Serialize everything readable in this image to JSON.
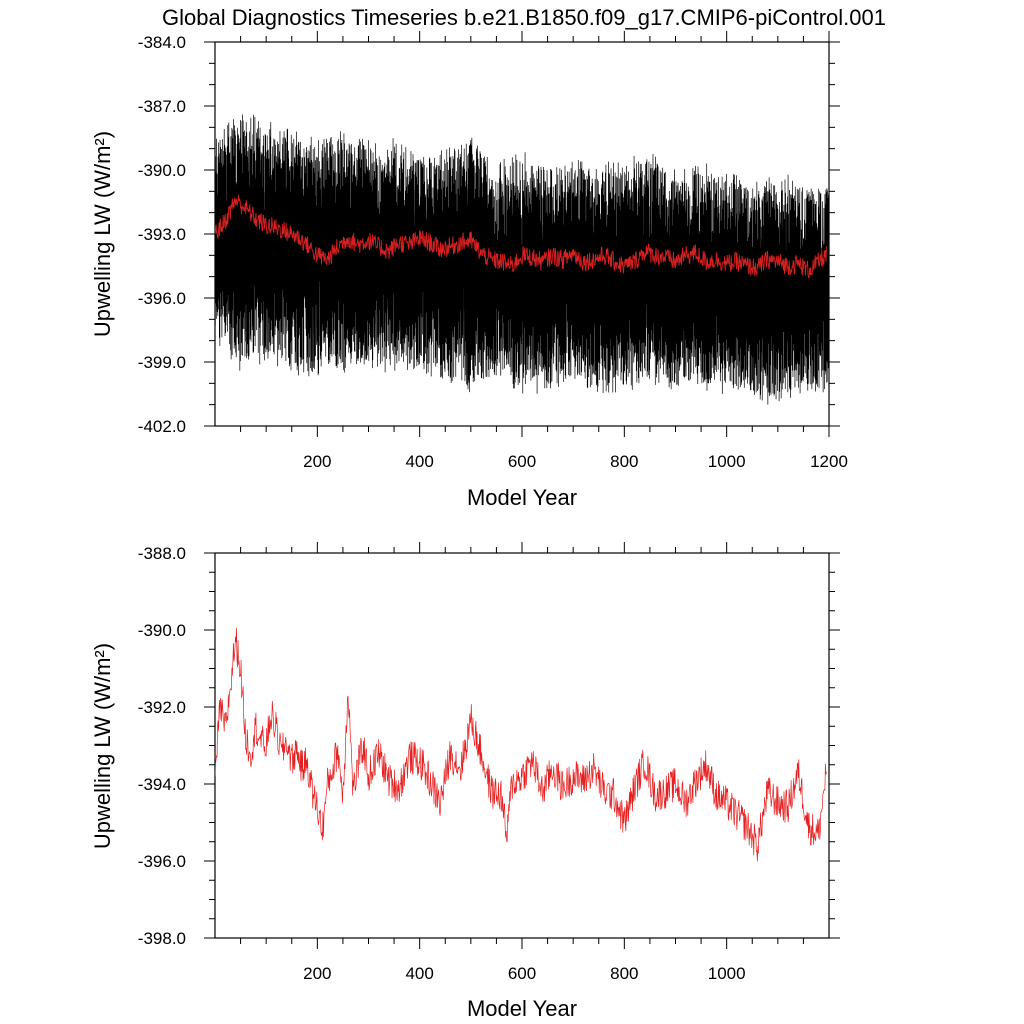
{
  "figure": {
    "title": "Global Diagnostics Timeseries b.e21.B1850.f09_g17.CMIP6-piControl.001"
  },
  "chart_data": [
    {
      "type": "line",
      "xlabel": "Model Year",
      "ylabel": "Upwelling LW (W/m²)",
      "xlim": [
        0,
        1200
      ],
      "ylim": [
        -402.0,
        -384.0
      ],
      "xticks": [
        200,
        400,
        600,
        800,
        1000,
        1200
      ],
      "yticks": [
        -402.0,
        -399.0,
        -396.0,
        -393.0,
        -390.0,
        -387.0,
        -384.0
      ],
      "grid": false,
      "series": [
        {
          "color": "#000000",
          "resolution": "monthly",
          "envelope_x": [
            0,
            50,
            100,
            150,
            200,
            250,
            300,
            350,
            400,
            450,
            500,
            550,
            600,
            650,
            700,
            750,
            800,
            850,
            900,
            950,
            1000,
            1050,
            1100,
            1150,
            1200
          ],
          "envelope_upper": [
            -388.5,
            -387.0,
            -387.5,
            -388.0,
            -388.5,
            -388.0,
            -388.5,
            -388.5,
            -389.0,
            -389.0,
            -388.0,
            -389.5,
            -389.0,
            -389.5,
            -389.5,
            -389.5,
            -389.5,
            -389.0,
            -390.0,
            -389.5,
            -390.0,
            -390.5,
            -390.0,
            -390.5,
            -390.5
          ],
          "envelope_lower": [
            -398.0,
            -399.5,
            -399.0,
            -399.5,
            -400.0,
            -399.5,
            -399.5,
            -399.5,
            -399.5,
            -400.0,
            -400.5,
            -400.0,
            -400.5,
            -400.5,
            -400.0,
            -400.5,
            -400.5,
            -400.0,
            -400.5,
            -400.5,
            -400.5,
            -401.0,
            -401.0,
            -400.5,
            -400.5
          ]
        },
        {
          "color": "#d42020",
          "resolution": "annual mean",
          "x": [
            0,
            20,
            40,
            60,
            80,
            100,
            120,
            140,
            160,
            180,
            200,
            220,
            240,
            260,
            280,
            300,
            320,
            340,
            360,
            380,
            400,
            420,
            440,
            460,
            480,
            500,
            520,
            540,
            560,
            580,
            600,
            620,
            640,
            660,
            680,
            700,
            720,
            740,
            760,
            780,
            800,
            820,
            840,
            860,
            880,
            900,
            920,
            940,
            960,
            980,
            1000,
            1020,
            1040,
            1060,
            1080,
            1100,
            1120,
            1140,
            1160,
            1180,
            1195
          ],
          "y": [
            -393.0,
            -392.4,
            -391.4,
            -391.8,
            -392.3,
            -392.6,
            -392.7,
            -392.9,
            -393.1,
            -393.5,
            -394.0,
            -394.2,
            -393.6,
            -393.2,
            -393.5,
            -393.3,
            -393.6,
            -393.8,
            -393.4,
            -393.5,
            -393.2,
            -393.4,
            -393.7,
            -393.6,
            -393.4,
            -393.3,
            -393.9,
            -394.2,
            -394.3,
            -394.5,
            -394.0,
            -394.1,
            -394.3,
            -394.0,
            -394.2,
            -393.9,
            -394.3,
            -394.2,
            -394.0,
            -394.3,
            -394.5,
            -394.3,
            -393.8,
            -394.0,
            -394.1,
            -394.3,
            -394.0,
            -393.9,
            -394.3,
            -394.2,
            -394.4,
            -394.3,
            -394.5,
            -394.6,
            -394.2,
            -394.3,
            -394.5,
            -394.4,
            -394.7,
            -394.3,
            -394.0
          ]
        }
      ]
    },
    {
      "type": "line",
      "xlabel": "Model Year",
      "ylabel": "Upwelling LW (W/m²)",
      "xlim": [
        0,
        1200
      ],
      "ylim": [
        -398.0,
        -388.0
      ],
      "xticks": [
        200,
        400,
        600,
        800,
        1000
      ],
      "yticks": [
        -398.0,
        -396.0,
        -394.0,
        -392.0,
        -390.0,
        -388.0
      ],
      "grid": false,
      "series": [
        {
          "color": "#e62020",
          "resolution": "annual mean",
          "x": [
            0,
            10,
            20,
            30,
            40,
            50,
            60,
            70,
            80,
            90,
            100,
            110,
            120,
            130,
            140,
            150,
            160,
            170,
            180,
            190,
            200,
            210,
            220,
            230,
            240,
            250,
            260,
            270,
            280,
            290,
            300,
            320,
            340,
            360,
            380,
            400,
            420,
            440,
            460,
            480,
            490,
            500,
            520,
            540,
            560,
            570,
            580,
            600,
            620,
            640,
            660,
            680,
            700,
            720,
            740,
            760,
            780,
            800,
            820,
            840,
            860,
            880,
            900,
            920,
            940,
            960,
            980,
            1000,
            1020,
            1040,
            1060,
            1080,
            1100,
            1120,
            1140,
            1160,
            1180,
            1195
          ],
          "y": [
            -393.8,
            -392.0,
            -392.6,
            -391.5,
            -390.2,
            -391.0,
            -392.8,
            -393.2,
            -392.5,
            -392.9,
            -393.0,
            -392.2,
            -392.6,
            -393.2,
            -392.9,
            -393.4,
            -393.1,
            -393.6,
            -393.4,
            -394.2,
            -394.6,
            -395.2,
            -394.0,
            -393.6,
            -393.1,
            -394.3,
            -391.5,
            -394.2,
            -393.5,
            -393.0,
            -393.8,
            -393.2,
            -393.9,
            -394.1,
            -393.3,
            -393.4,
            -393.9,
            -394.5,
            -393.2,
            -393.6,
            -393.0,
            -392.3,
            -393.2,
            -394.2,
            -394.3,
            -395.4,
            -394.0,
            -393.8,
            -393.4,
            -394.2,
            -393.6,
            -394.1,
            -393.8,
            -393.9,
            -393.6,
            -394.2,
            -394.3,
            -395.0,
            -394.1,
            -393.4,
            -394.3,
            -394.2,
            -394.0,
            -394.5,
            -393.9,
            -393.5,
            -394.3,
            -394.5,
            -394.8,
            -395.1,
            -395.6,
            -394.2,
            -394.5,
            -394.6,
            -393.7,
            -395.1,
            -395.3,
            -393.6
          ]
        }
      ]
    }
  ]
}
